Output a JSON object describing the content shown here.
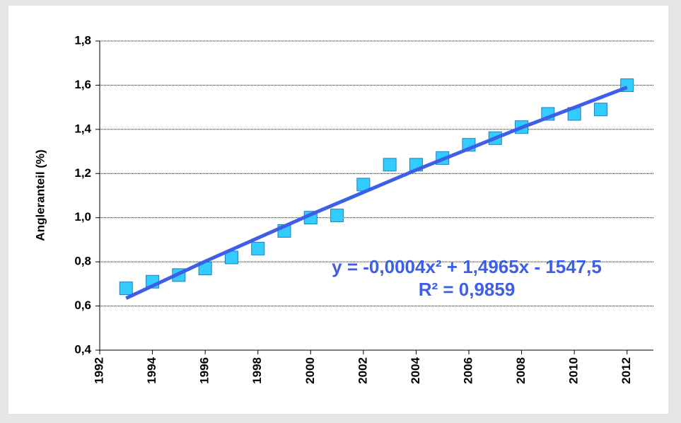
{
  "chart_data": {
    "type": "scatter",
    "y_label": "Angleranteil (%)",
    "x": [
      1993,
      1994,
      1995,
      1996,
      1997,
      1998,
      1999,
      2000,
      2001,
      2002,
      2003,
      2004,
      2005,
      2006,
      2007,
      2008,
      2009,
      2010,
      2011,
      2012
    ],
    "values": [
      0.68,
      0.71,
      0.74,
      0.77,
      0.82,
      0.86,
      0.94,
      1.0,
      1.01,
      1.15,
      1.24,
      1.24,
      1.27,
      1.33,
      1.36,
      1.41,
      1.47,
      1.47,
      1.49,
      1.6
    ],
    "color": "#33ccff",
    "trendline": {
      "x": [
        1993,
        1996,
        2000,
        2004,
        2008,
        2012
      ],
      "values": [
        0.635,
        0.802,
        1.014,
        1.216,
        1.408,
        1.59
      ],
      "color": "#3d5ee8",
      "equation": "y = -0,0004x² + 1,4965x - 1547,5",
      "r_squared": "R² = 0,9859"
    },
    "xlim": [
      1992,
      2013
    ],
    "xticks": [
      1992,
      1994,
      1996,
      1998,
      2000,
      2002,
      2004,
      2006,
      2008,
      2010,
      2012
    ],
    "ylim": [
      0.4,
      1.8
    ],
    "yticks": [
      {
        "value": 0.4,
        "label": "0,4"
      },
      {
        "value": 0.6,
        "label": "0,6"
      },
      {
        "value": 0.8,
        "label": "0,8"
      },
      {
        "value": 1.0,
        "label": "1,0"
      },
      {
        "value": 1.2,
        "label": "1,2"
      },
      {
        "value": 1.4,
        "label": "1,4"
      },
      {
        "value": 1.6,
        "label": "1,6"
      },
      {
        "value": 1.8,
        "label": "1,8"
      }
    ],
    "grid": true
  }
}
